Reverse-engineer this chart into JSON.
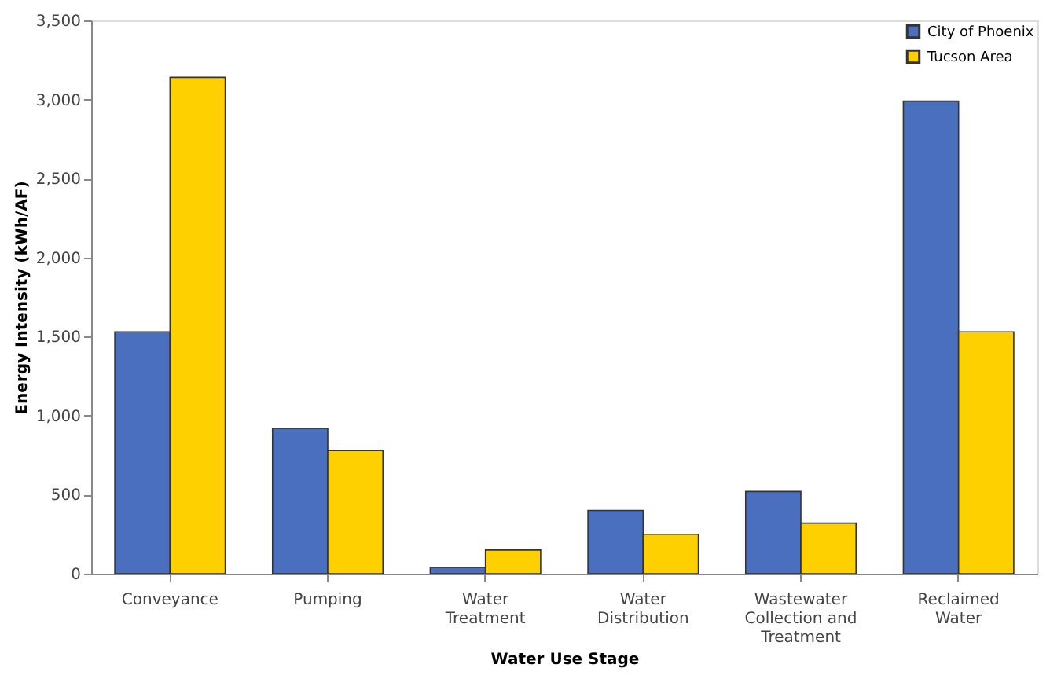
{
  "chart_data": {
    "type": "bar",
    "xlabel": "Water Use Stage",
    "ylabel": "Energy Intensity (kWh/AF)",
    "categories": [
      "Conveyance",
      "Pumping",
      "Water Treatment",
      "Water Distribution",
      "Wastewater Collection and Treatment",
      "Reclaimed Water"
    ],
    "series": [
      {
        "name": "City of Phoenix",
        "color": "#4a6fbf",
        "values": [
          1530,
          920,
          40,
          400,
          520,
          2990
        ]
      },
      {
        "name": "Tucson Area",
        "color": "#ffd000",
        "values": [
          3140,
          780,
          150,
          250,
          320,
          1530
        ]
      }
    ],
    "ylim": [
      0,
      3500
    ],
    "yticks": [
      0,
      500,
      {
        "value": 1000,
        "label": "1,000"
      },
      {
        "value": 1500,
        "label": "1,500"
      },
      {
        "value": 2000,
        "label": "2,000"
      },
      {
        "value": 2500,
        "label": "2,500"
      },
      {
        "value": 3000,
        "label": "3,000"
      },
      {
        "value": 3500,
        "label": "3,500"
      }
    ],
    "grid": false,
    "legend": "top right"
  }
}
